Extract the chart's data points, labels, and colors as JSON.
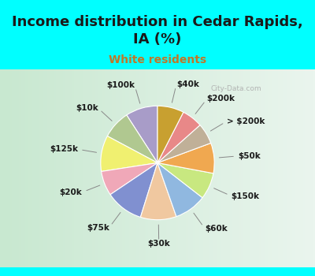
{
  "title": "Income distribution in Cedar Rapids,\nIA (%)",
  "subtitle": "White residents",
  "bg_color": "#00FFFF",
  "chart_bg_top": "#e8f5ee",
  "chart_bg_bottom": "#d0e8d8",
  "labels": [
    "$100k",
    "$10k",
    "$125k",
    "$20k",
    "$75k",
    "$30k",
    "$60k",
    "$150k",
    "$50k",
    "> $200k",
    "$200k",
    "$40k"
  ],
  "sizes": [
    8.5,
    7.5,
    9.5,
    6.5,
    10.0,
    9.5,
    8.5,
    7.0,
    8.0,
    5.5,
    5.5,
    7.0
  ],
  "colors": [
    "#a89cc8",
    "#b0c890",
    "#f0f070",
    "#f0a8b8",
    "#8090d0",
    "#f0c8a0",
    "#90b8e0",
    "#c8e880",
    "#f0a850",
    "#c0b098",
    "#e88888",
    "#c8a030"
  ],
  "startangle": 90,
  "title_fontsize": 13,
  "subtitle_fontsize": 10,
  "label_fontsize": 7.5
}
